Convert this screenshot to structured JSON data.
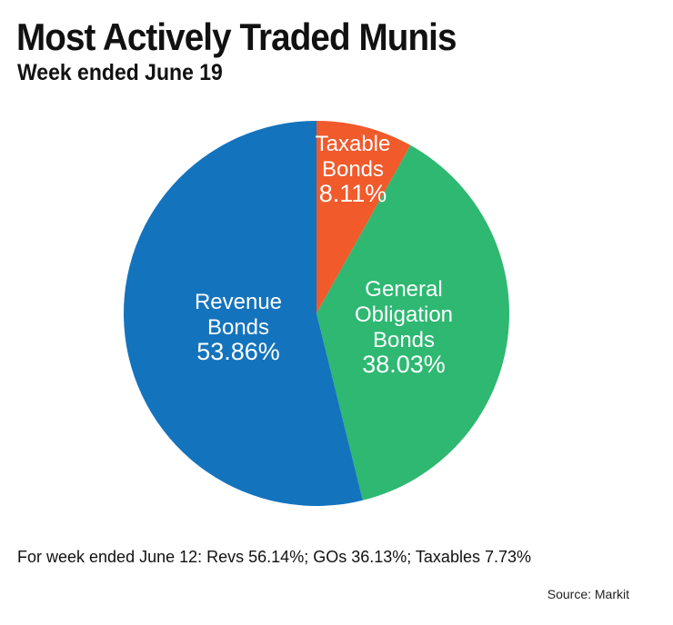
{
  "chart_data": {
    "type": "pie",
    "title": "Most Actively Traded Munis",
    "subtitle": "Week ended June 19",
    "slices": [
      {
        "label_lines": [
          "Taxable",
          "Bonds"
        ],
        "value": 8.11,
        "value_label": "8.11%",
        "color": "#f15a2b"
      },
      {
        "label_lines": [
          "General",
          "Obligation",
          "Bonds"
        ],
        "value": 38.03,
        "value_label": "38.03%",
        "color": "#2eb872"
      },
      {
        "label_lines": [
          "Revenue",
          "Bonds"
        ],
        "value": 53.86,
        "value_label": "53.86%",
        "color": "#1473bd"
      }
    ],
    "footnote": "For week ended June 12: Revs 56.14%; GOs 36.13%; Taxables 7.73%",
    "source": "Source: Markit"
  }
}
